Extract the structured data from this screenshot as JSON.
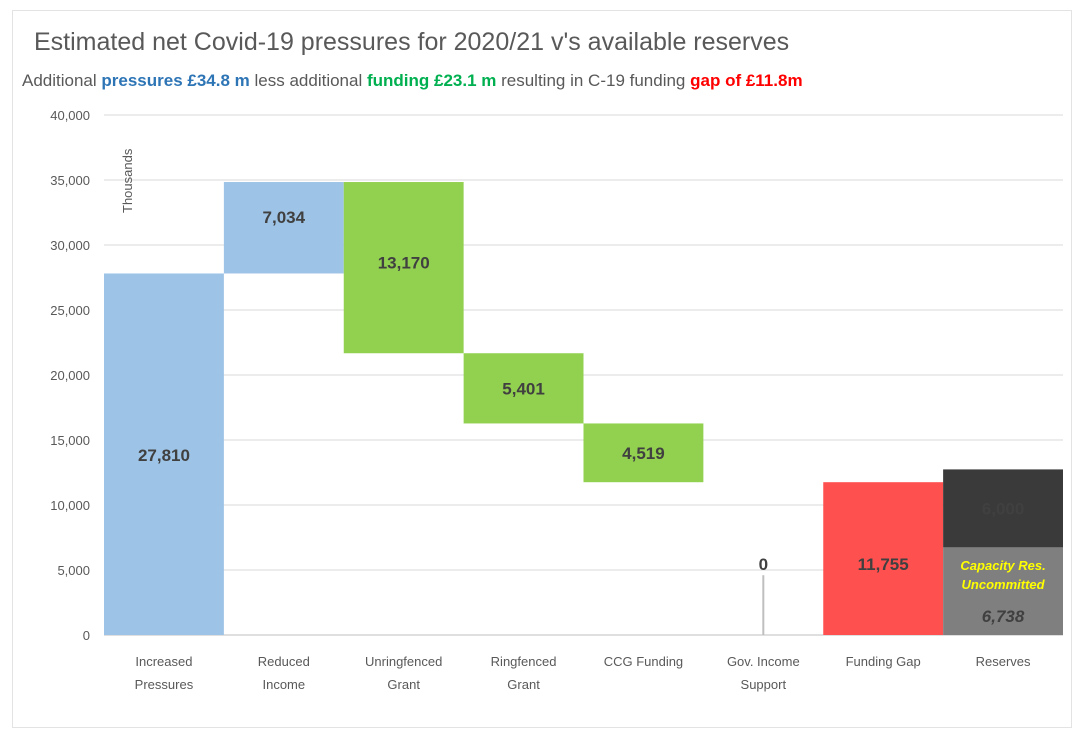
{
  "title": "Estimated net Covid-19 pressures for 2020/21 v's available reserves",
  "subtitle": {
    "part1": "Additional ",
    "pressures": "pressures £34.8 m",
    "part2": " less additional ",
    "funding": "funding £23.1 m",
    "part3": " resulting in C-19 funding ",
    "gap": "gap of £11.8m"
  },
  "colors": {
    "pressures": "#9dc3e6",
    "funding": "#92d050",
    "gap": "#ff5050",
    "reserves_committed": "#3a3a3a",
    "reserves_uncommitted": "#7f7f7f",
    "uncommitted_text": "#ffff00",
    "pressures_text": "#2e75b6",
    "funding_text": "#00b050",
    "gap_text": "#ff0000"
  },
  "chart_data": {
    "type": "bar",
    "subtype": "waterfall",
    "ylabel": "Thousands",
    "ylim": [
      0,
      40000
    ],
    "yticks": [
      "0",
      "5,000",
      "10,000",
      "15,000",
      "20,000",
      "25,000",
      "30,000",
      "35,000",
      "40,000"
    ],
    "grid": true,
    "categories": [
      [
        "Increased",
        "Pressures"
      ],
      [
        "Reduced",
        "Income"
      ],
      [
        "Unringfenced",
        "Grant"
      ],
      [
        "Ringfenced",
        "Grant"
      ],
      [
        "CCG Funding"
      ],
      [
        "Gov. Income",
        "Support"
      ],
      [
        "Funding Gap"
      ],
      [
        "Reserves"
      ]
    ],
    "bars": [
      {
        "base": 0,
        "top": 27810,
        "label": "27,810",
        "color": "pressures"
      },
      {
        "base": 27810,
        "top": 34844,
        "label": "7,034",
        "color": "pressures"
      },
      {
        "base": 21674,
        "top": 34844,
        "label": "13,170",
        "color": "funding"
      },
      {
        "base": 16273,
        "top": 21674,
        "label": "5,401",
        "color": "funding"
      },
      {
        "base": 11754,
        "top": 16273,
        "label": "4,519",
        "color": "funding"
      },
      {
        "base": 0,
        "top": 0,
        "label": "0",
        "color": "none"
      },
      {
        "base": 0,
        "top": 11755,
        "label": "11,755",
        "color": "gap"
      },
      {
        "base": 6738,
        "top": 12738,
        "label": "6,000",
        "color": "reserves_committed"
      },
      {
        "base": 0,
        "top": 6738,
        "label": "6,738",
        "color": "reserves_uncommitted",
        "caption": [
          "Capacity Res.",
          "Uncommitted"
        ]
      }
    ]
  }
}
